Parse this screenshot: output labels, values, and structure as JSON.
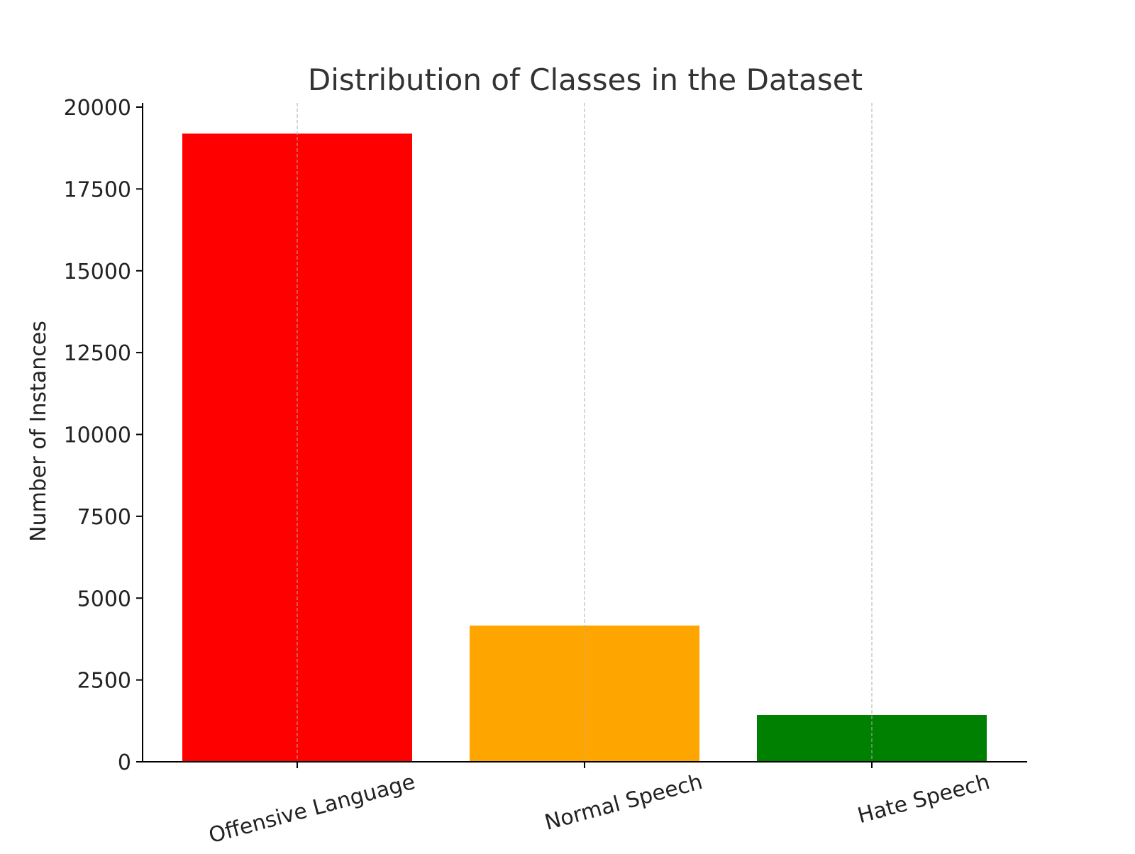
{
  "chart_data": {
    "type": "bar",
    "title": "Distribution of Classes in the Dataset",
    "xlabel": "",
    "ylabel": "Number of Instances",
    "categories": [
      "Offensive Language",
      "Normal Speech",
      "Hate Speech"
    ],
    "values": [
      19190,
      4163,
      1430
    ],
    "colors": [
      "#ff0000",
      "#ffa500",
      "#008000"
    ],
    "ylim": [
      0,
      20000
    ],
    "yticks": [
      0,
      2500,
      5000,
      7500,
      10000,
      12500,
      15000,
      17500,
      20000
    ],
    "grid": "x-axis dashed",
    "legend": "none",
    "xtick_rotation_deg": 15
  }
}
